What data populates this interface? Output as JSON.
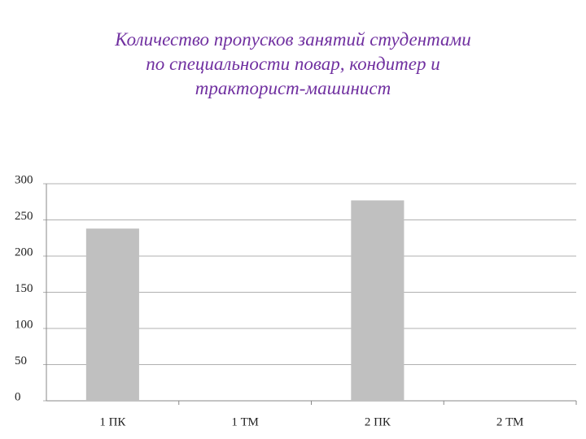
{
  "chart_data": {
    "type": "bar",
    "title": "Количество пропусков занятий студентами\nпо специальности повар, кондитер и\nтракторист-машинист",
    "categories": [
      "1 ПК",
      "1 ТМ",
      "2 ПК",
      "2 ТМ"
    ],
    "values": [
      238,
      0,
      277,
      0
    ],
    "color": "#c0c0c0",
    "ylim": [
      0,
      300
    ],
    "yticks": [
      0,
      50,
      100,
      150,
      200,
      250,
      300
    ],
    "grid": true
  }
}
